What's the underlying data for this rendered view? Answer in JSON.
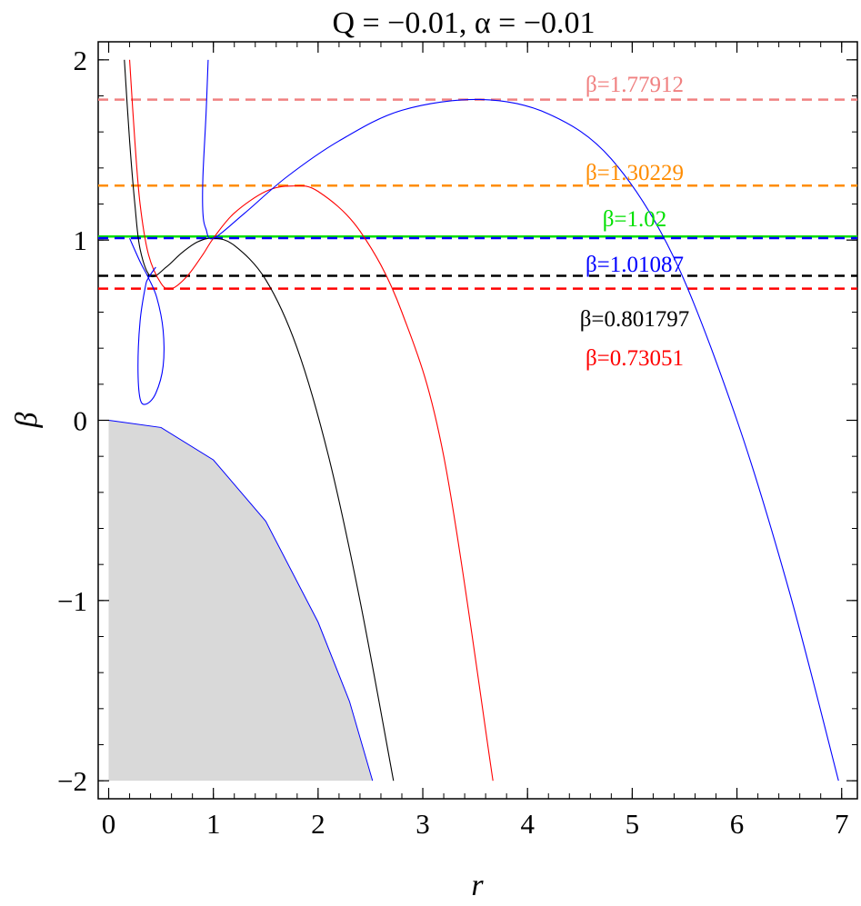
{
  "chart_data": {
    "type": "line",
    "title": "Q = −0.01, α = −0.01",
    "xlabel": "r",
    "ylabel": "β",
    "xlim": [
      -0.1,
      7.15
    ],
    "ylim": [
      -2.1,
      2.1
    ],
    "xticks": [
      0,
      1,
      2,
      3,
      4,
      5,
      6,
      7
    ],
    "yticks": [
      -2,
      -1,
      0,
      1,
      2
    ],
    "xtick_labels": [
      "0",
      "1",
      "2",
      "3",
      "4",
      "5",
      "6",
      "7"
    ],
    "ytick_labels": [
      "−2",
      "−1",
      "0",
      "1",
      "2"
    ],
    "minor_ticks": true,
    "grid": false,
    "shaded_region": {
      "color": "#d9d9d9",
      "boundary": [
        [
          0,
          0
        ],
        [
          0.5,
          -0.04
        ],
        [
          1.0,
          -0.22
        ],
        [
          1.5,
          -0.56
        ],
        [
          2.0,
          -1.12
        ],
        [
          2.3,
          -1.56
        ],
        [
          2.52,
          -2.0
        ]
      ]
    },
    "reference_lines": [
      {
        "y": 1.77912,
        "label": "β=1.77912",
        "color": "#f08080",
        "style": "dashed"
      },
      {
        "y": 1.30229,
        "label": "β=1.30229",
        "color": "#ff8c00",
        "style": "dashed"
      },
      {
        "y": 1.02,
        "label": "β=1.02",
        "color": "#00e000",
        "style": "solid"
      },
      {
        "y": 1.01087,
        "label": "β=1.01087",
        "color": "#0000ff",
        "style": "dashed"
      },
      {
        "y": 0.801797,
        "label": "β=0.801797",
        "color": "#000000",
        "style": "dashed"
      },
      {
        "y": 0.73051,
        "label": "β=0.73051",
        "color": "#ff0000",
        "style": "dashed"
      }
    ],
    "series": [
      {
        "color": "#000000",
        "points": [
          [
            0.15,
            2.0
          ],
          [
            0.2,
            1.55
          ],
          [
            0.25,
            1.2
          ],
          [
            0.3,
            0.95
          ],
          [
            0.4,
            0.8
          ],
          [
            0.55,
            0.85
          ],
          [
            0.7,
            0.93
          ],
          [
            0.85,
            0.99
          ],
          [
            1.0,
            1.01
          ],
          [
            1.2,
            0.97
          ],
          [
            1.5,
            0.78
          ],
          [
            1.8,
            0.4
          ],
          [
            2.1,
            -0.2
          ],
          [
            2.4,
            -1.0
          ],
          [
            2.72,
            -2.0
          ]
        ]
      },
      {
        "color": "#ff0000",
        "points": [
          [
            0.2,
            2.0
          ],
          [
            0.25,
            1.55
          ],
          [
            0.3,
            1.2
          ],
          [
            0.38,
            0.92
          ],
          [
            0.5,
            0.76
          ],
          [
            0.6,
            0.73
          ],
          [
            0.75,
            0.8
          ],
          [
            0.9,
            0.92
          ],
          [
            1.0,
            1.01
          ],
          [
            1.2,
            1.15
          ],
          [
            1.5,
            1.27
          ],
          [
            1.75,
            1.3
          ],
          [
            2.0,
            1.27
          ],
          [
            2.4,
            1.05
          ],
          [
            2.8,
            0.6
          ],
          [
            3.2,
            -0.2
          ],
          [
            3.67,
            -2.0
          ]
        ]
      },
      {
        "color": "#0000ff",
        "points": [
          [
            0.95,
            2.0
          ],
          [
            0.93,
            1.7
          ],
          [
            0.9,
            1.35
          ],
          [
            0.9,
            1.15
          ],
          [
            0.93,
            1.06
          ],
          [
            1.0,
            1.01
          ],
          [
            1.3,
            1.15
          ],
          [
            1.7,
            1.35
          ],
          [
            2.2,
            1.55
          ],
          [
            2.8,
            1.72
          ],
          [
            3.55,
            1.78
          ],
          [
            4.2,
            1.7
          ],
          [
            4.8,
            1.45
          ],
          [
            5.4,
            0.9
          ],
          [
            6.0,
            0.0
          ],
          [
            6.5,
            -0.95
          ],
          [
            6.97,
            -2.0
          ]
        ]
      },
      {
        "color": "#0000ff",
        "points": [
          [
            0.2,
            1.01
          ],
          [
            0.3,
            0.88
          ],
          [
            0.38,
            0.79
          ],
          [
            0.46,
            0.68
          ],
          [
            0.52,
            0.5
          ],
          [
            0.52,
            0.3
          ],
          [
            0.45,
            0.15
          ],
          [
            0.36,
            0.09
          ],
          [
            0.3,
            0.12
          ],
          [
            0.28,
            0.3
          ],
          [
            0.3,
            0.55
          ],
          [
            0.35,
            0.74
          ],
          [
            0.38,
            0.79
          ],
          [
            0.45,
            0.85
          ]
        ]
      }
    ]
  }
}
